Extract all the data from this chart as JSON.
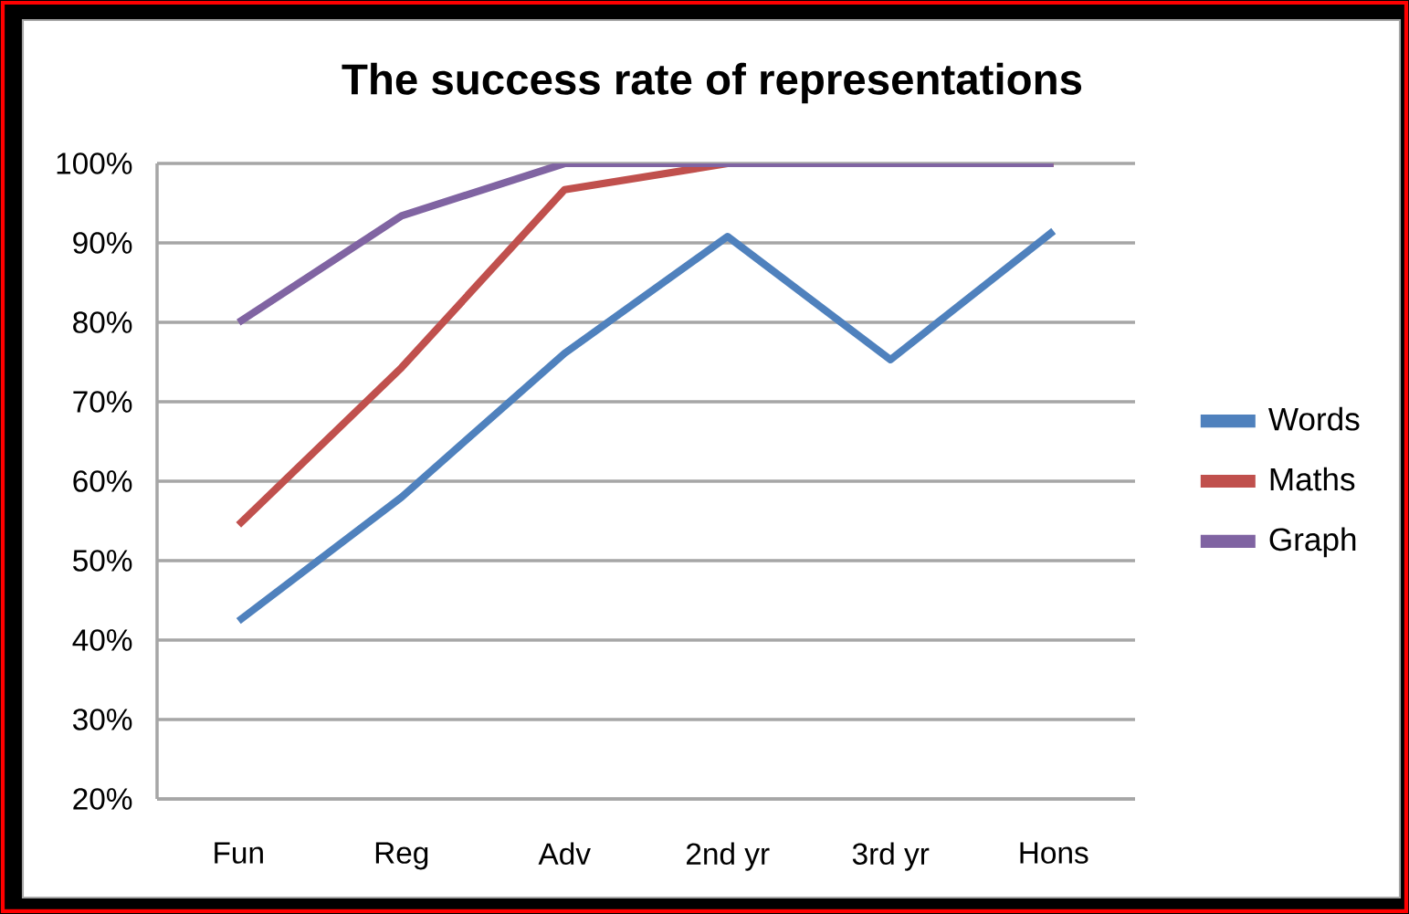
{
  "chart_data": {
    "type": "line",
    "title": "The success rate of representations",
    "categories": [
      "Fun",
      "Reg",
      "Adv",
      "2nd yr",
      "3rd yr",
      "Hons"
    ],
    "series": [
      {
        "name": "Words",
        "color": "#4f81bd",
        "values": [
          42.4,
          58,
          76.1,
          90.8,
          75.3,
          91.5
        ]
      },
      {
        "name": "Maths",
        "color": "#c0504d",
        "values": [
          54.5,
          74.3,
          96.7,
          100,
          100,
          100
        ]
      },
      {
        "name": "Graph",
        "color": "#8064a2",
        "values": [
          80,
          93.4,
          100,
          100,
          100,
          100
        ]
      }
    ],
    "ylim": [
      20,
      100
    ],
    "yticks": [
      {
        "value": 20,
        "label": "20%"
      },
      {
        "value": 30,
        "label": "30%"
      },
      {
        "value": 40,
        "label": "40%"
      },
      {
        "value": 50,
        "label": "50%"
      },
      {
        "value": 60,
        "label": "60%"
      },
      {
        "value": 70,
        "label": "70%"
      },
      {
        "value": 80,
        "label": "80%"
      },
      {
        "value": 90,
        "label": "90%"
      },
      {
        "value": 100,
        "label": "100%"
      }
    ],
    "grid": "y",
    "legend": "right",
    "marker": "none",
    "line_style": "solid"
  }
}
